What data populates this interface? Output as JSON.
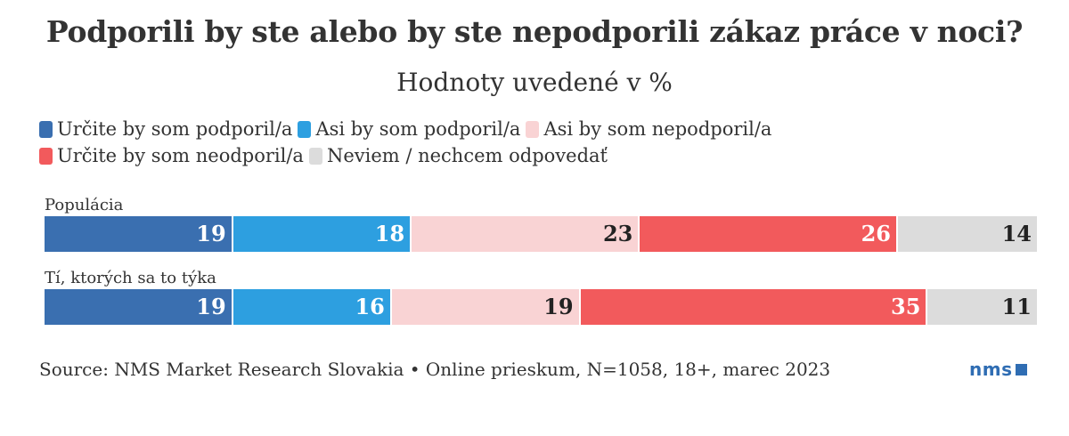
{
  "chart_data": {
    "type": "bar",
    "orientation": "horizontal",
    "stacked": true,
    "title": "Podporili by ste alebo by ste nepodporili zákaz práce v noci?",
    "subtitle": "Hodnoty uvedené v %",
    "categories": [
      "Populácia",
      "Tí, ktorých sa to týka"
    ],
    "series": [
      {
        "name": "Určite by som podporil/a",
        "values": [
          19,
          19
        ],
        "color": "#3a6fb0",
        "label_color": "#ffffff"
      },
      {
        "name": "Asi by som podporil/a",
        "values": [
          18,
          16
        ],
        "color": "#2d9fe0",
        "label_color": "#ffffff"
      },
      {
        "name": "Asi by som nepodporil/a",
        "values": [
          23,
          19
        ],
        "color": "#f9d3d4",
        "label_color": "#222222"
      },
      {
        "name": "Určite by som neodporil/a",
        "values": [
          26,
          35
        ],
        "color": "#f25a5c",
        "label_color": "#ffffff"
      },
      {
        "name": "Neviem / nechcem odpovedať",
        "values": [
          14,
          11
        ],
        "color": "#dcdcdc",
        "label_color": "#222222"
      }
    ],
    "xlim": [
      0,
      100
    ],
    "legend": "top",
    "grid": false
  },
  "source": "Source: NMS Market Research Slovakia • Online prieskum, N=1058, 18+, marec 2023",
  "logo_text": "nms",
  "colors": {
    "brand": "#2f6db3"
  }
}
